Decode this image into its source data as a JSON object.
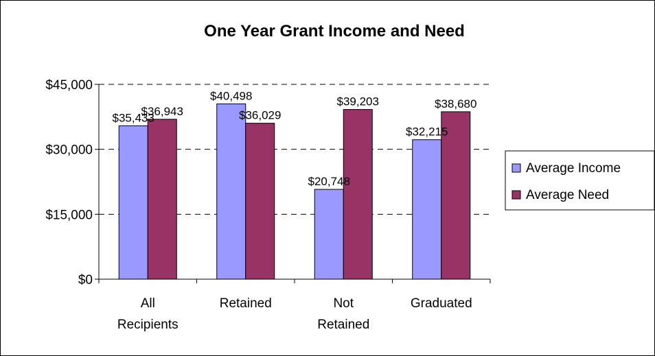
{
  "chart_data": {
    "type": "bar",
    "title": "One Year Grant Income and Need",
    "xlabel": "",
    "ylabel": "",
    "categories": [
      [
        "All",
        "Recipients"
      ],
      [
        "Retained"
      ],
      [
        "Not",
        "Retained"
      ],
      [
        "Graduated"
      ]
    ],
    "series": [
      {
        "name": "Average Income",
        "color": "#9999FF",
        "values": [
          35433,
          40498,
          20748,
          32215
        ],
        "labels": [
          "$35,433",
          "$40,498",
          "$20,748",
          "$32,215"
        ]
      },
      {
        "name": "Average Need",
        "color": "#993366",
        "values": [
          36943,
          36029,
          39203,
          38680
        ],
        "labels": [
          "$36,943",
          "$36,029",
          "$39,203",
          "$38,680"
        ]
      }
    ],
    "ylim": [
      0,
      45000
    ],
    "yticks": [
      0,
      15000,
      30000,
      45000
    ],
    "ytick_labels": [
      "$0",
      "$15,000",
      "$30,000",
      "$45,000"
    ],
    "grid": "dashed horizontal",
    "legend_position": "right"
  }
}
